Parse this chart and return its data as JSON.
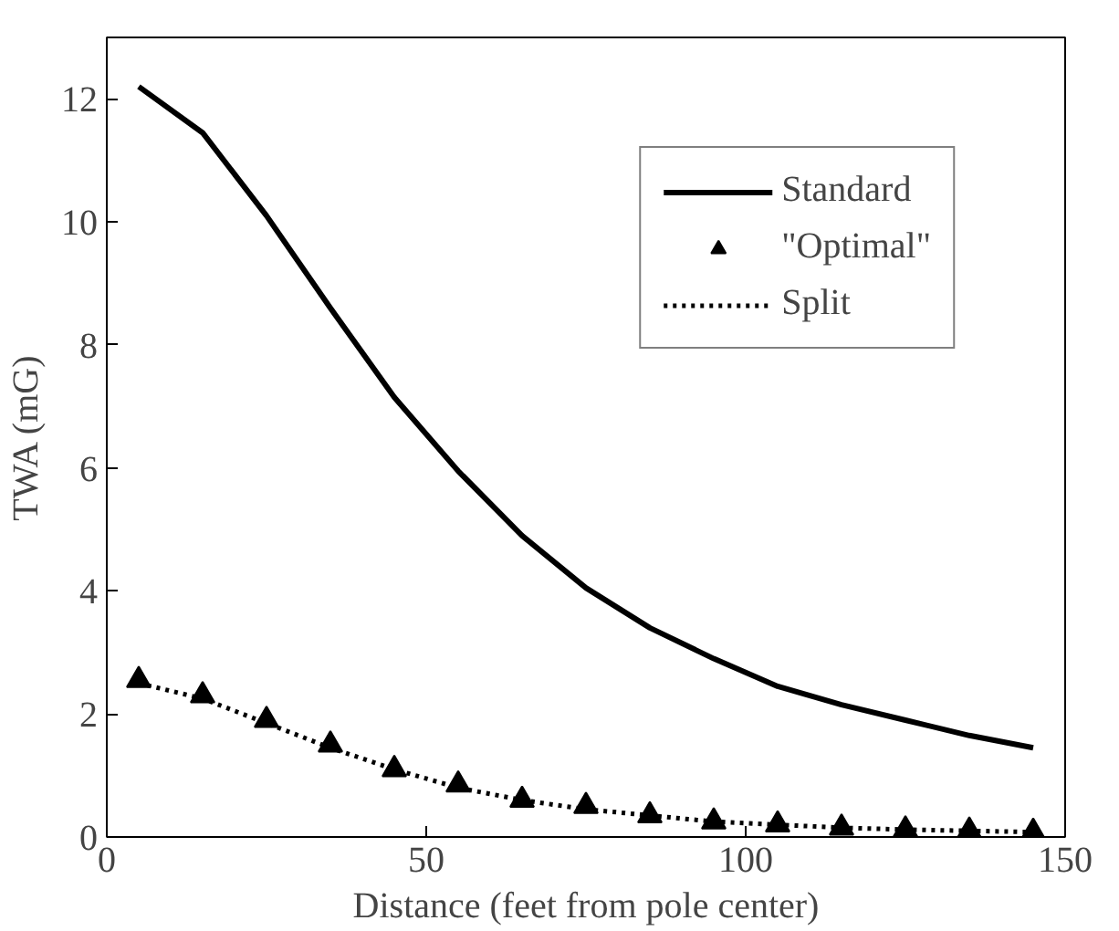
{
  "chart_data": {
    "type": "line",
    "xlabel": "Distance (feet from pole center)",
    "ylabel": "TWA (mG)",
    "x": [
      5,
      15,
      25,
      35,
      45,
      55,
      65,
      75,
      85,
      95,
      105,
      115,
      125,
      135,
      145
    ],
    "xlim": [
      0,
      150
    ],
    "xticks": [
      0,
      50,
      100,
      150
    ],
    "ylim": [
      0,
      13
    ],
    "yticks": [
      0,
      2,
      4,
      6,
      8,
      10,
      12
    ],
    "grid": false,
    "legend": "top right",
    "series": [
      {
        "name": "Standard",
        "color": "#000000",
        "line_style": "solid",
        "marker": "none",
        "values": [
          12.2,
          11.45,
          10.1,
          8.6,
          7.15,
          5.95,
          4.9,
          4.05,
          3.4,
          2.9,
          2.45,
          2.15,
          1.9,
          1.65,
          1.45
        ]
      },
      {
        "name": "\"Optimal\"",
        "type": "scatter",
        "color": "#000000",
        "marker": "triangle",
        "values": [
          2.55,
          2.3,
          1.9,
          1.5,
          1.1,
          0.85,
          0.6,
          0.5,
          0.35,
          0.25,
          0.2,
          0.15,
          0.12,
          0.1,
          0.08
        ]
      },
      {
        "name": "Split",
        "color": "#000000",
        "line_style": "dotted",
        "marker": "none",
        "values": [
          2.5,
          2.25,
          1.85,
          1.45,
          1.1,
          0.8,
          0.6,
          0.45,
          0.35,
          0.25,
          0.2,
          0.15,
          0.12,
          0.1,
          0.08
        ]
      }
    ]
  }
}
